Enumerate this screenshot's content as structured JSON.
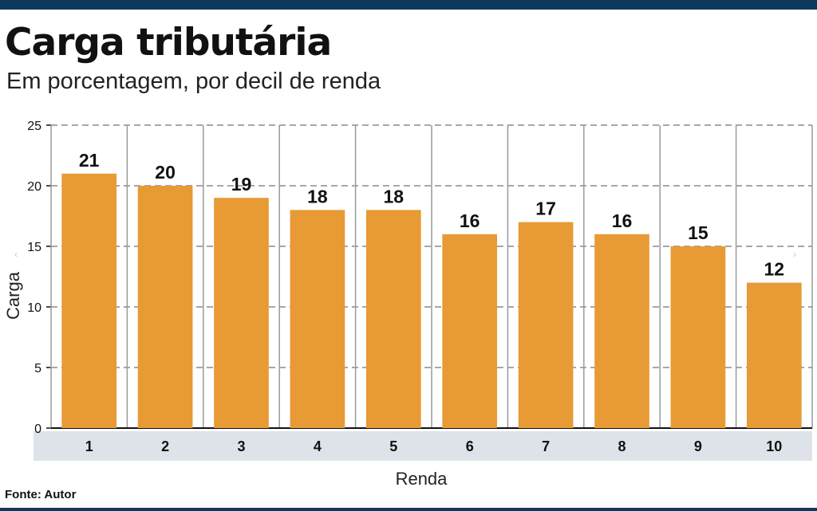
{
  "header": {
    "title": "Carga tributária",
    "subtitle": "Em porcentagem, por decil de renda"
  },
  "footer": {
    "source": "Fonte: Autor"
  },
  "nav": {
    "prev_icon": "chevron-left-icon",
    "next_icon": "chevron-right-icon"
  },
  "colors": {
    "bar": "#e89a35",
    "top_bar": "#0d3a5c",
    "category_band": "#dde3e8",
    "grid": "#8a8a8a"
  },
  "chart_data": {
    "type": "bar",
    "title": "Carga tributária",
    "subtitle": "Em porcentagem, por decil de renda",
    "xlabel": "Renda",
    "ylabel": "Carga",
    "categories": [
      "1",
      "2",
      "3",
      "4",
      "5",
      "6",
      "7",
      "8",
      "9",
      "10"
    ],
    "values": [
      21,
      20,
      19,
      18,
      18,
      16,
      17,
      16,
      15,
      12
    ],
    "data_labels": [
      "21",
      "20",
      "19",
      "18",
      "18",
      "16",
      "17",
      "16",
      "15",
      "12"
    ],
    "ylim": [
      0,
      25
    ],
    "yticks": [
      "0",
      "5",
      "10",
      "15",
      "20",
      "25"
    ],
    "grid": true,
    "legend": "none"
  }
}
